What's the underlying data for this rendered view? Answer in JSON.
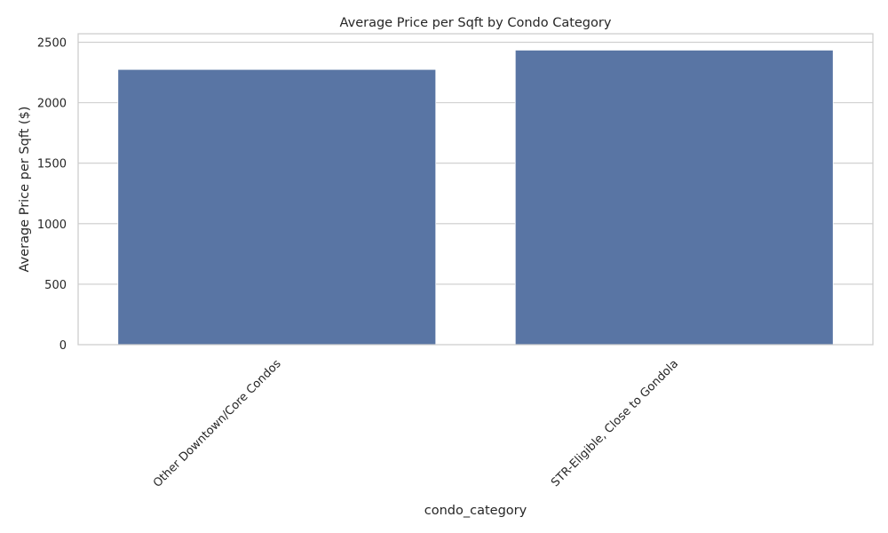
{
  "chart_data": {
    "type": "bar",
    "title": "Average Price per Sqft by Condo Category",
    "xlabel": "condo_category",
    "ylabel": "Average Price per Sqft ($)",
    "categories": [
      "Other Downtown/Core Condos",
      "STR-Eligible, Close to Gondola"
    ],
    "values": [
      2275,
      2435
    ],
    "ylim": [
      0,
      2570
    ],
    "yticks": [
      0,
      500,
      1000,
      1500,
      2000,
      2500
    ],
    "grid": "horizontal",
    "colors": {
      "bar": "#5975a4"
    }
  }
}
